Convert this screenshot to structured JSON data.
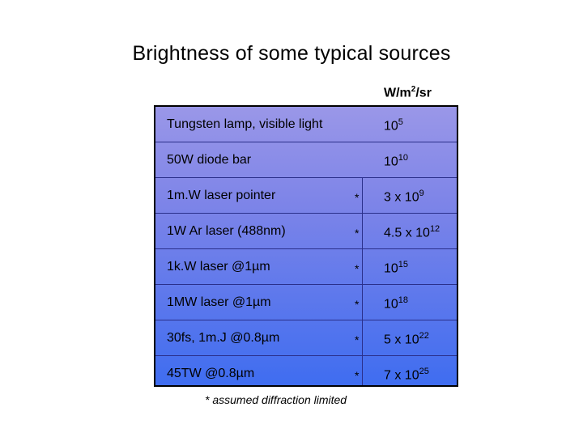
{
  "title": "Brightness of some typical sources",
  "unit": {
    "prefix": "W/m",
    "exp": "2",
    "suffix": "/sr"
  },
  "rows": [
    {
      "label": "Tungsten lamp, visible light",
      "star": "",
      "mant": "10",
      "exp": "5"
    },
    {
      "label": "50W diode bar",
      "star": "",
      "mant": "10",
      "exp": "10"
    },
    {
      "label": "1m.W laser pointer",
      "star": "*",
      "mant": "3 x 10",
      "exp": "9"
    },
    {
      "label": "1W Ar laser  (488nm)",
      "star": "*",
      "mant": "4.5 x 10",
      "exp": "12"
    },
    {
      "label": "1k.W laser @1µm",
      "star": "*",
      "mant": "10",
      "exp": "15"
    },
    {
      "label": "1MW laser @1µm",
      "star": "*",
      "mant": "10",
      "exp": "18"
    },
    {
      "label": "30fs, 1m.J @0.8µm",
      "star": "*",
      "mant": "5 x 10",
      "exp": "22"
    },
    {
      "label": "45TW @0.8µm",
      "star": "*",
      "mant": "7 x 10",
      "exp": "25"
    }
  ],
  "footnote": "* assumed diffraction limited"
}
